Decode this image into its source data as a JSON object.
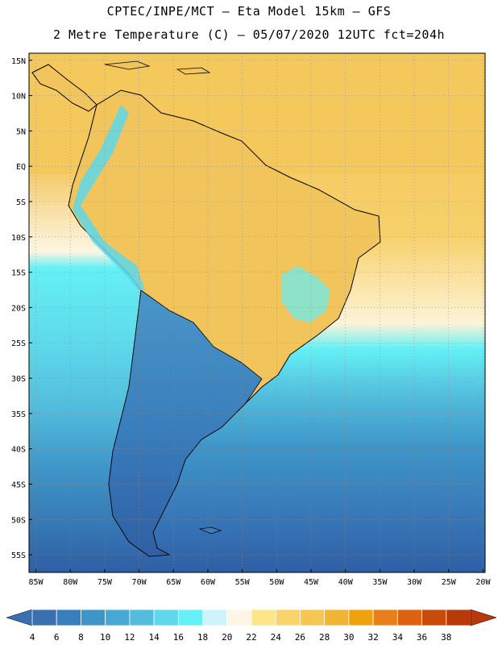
{
  "header": {
    "line1": "CPTEC/INPE/MCT –  Eta Model 15km – GFS",
    "line2": "2 Metre Temperature (C) – 05/07/2020 12UTC fct=204h"
  },
  "axes": {
    "lat_labels": [
      "15N",
      "10N",
      "5N",
      "EQ",
      "5S",
      "10S",
      "15S",
      "20S",
      "25S",
      "30S",
      "35S",
      "40S",
      "45S",
      "50S",
      "55S"
    ],
    "lon_labels": [
      "85W",
      "80W",
      "75W",
      "70W",
      "65W",
      "60W",
      "55W",
      "50W",
      "45W",
      "40W",
      "35W",
      "30W",
      "25W",
      "20W"
    ]
  },
  "colorbar": {
    "labels": [
      "4",
      "6",
      "8",
      "10",
      "12",
      "14",
      "16",
      "18",
      "20",
      "22",
      "24",
      "26",
      "28",
      "30",
      "32",
      "34",
      "36",
      "38"
    ],
    "colors": [
      "#3a6fb0",
      "#3a7fbd",
      "#3e95c8",
      "#47a9d3",
      "#52bddd",
      "#5ed8ea",
      "#64f0f5",
      "#cdf4fb",
      "#fdf6e4",
      "#fde58a",
      "#f9d46a",
      "#f6c652",
      "#f0b535",
      "#eea20e",
      "#e7801a",
      "#df6210",
      "#c94b0a",
      "#b9390a"
    ]
  },
  "colors": {
    "ocean_warm": "#f6c955",
    "ocean_mid": "#5fe3f1",
    "ocean_cold": "#2f5fa5",
    "land_warm": "#f2c45c"
  }
}
